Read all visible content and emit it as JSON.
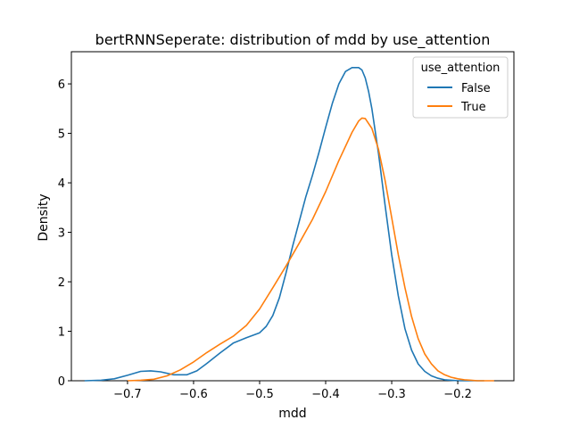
{
  "chart_data": {
    "type": "line",
    "title": "bertRNNSeperate: distribution of mdd by use_attention",
    "xlabel": "mdd",
    "ylabel": "Density",
    "xlim": [
      -0.785,
      -0.115
    ],
    "ylim": [
      0,
      6.65
    ],
    "xticks": [
      -0.7,
      -0.6,
      -0.5,
      -0.4,
      -0.3,
      -0.2
    ],
    "xtick_labels": [
      "−0.7",
      "−0.6",
      "−0.5",
      "−0.4",
      "−0.3",
      "−0.2"
    ],
    "yticks": [
      0,
      1,
      2,
      3,
      4,
      5,
      6
    ],
    "ytick_labels": [
      "0",
      "1",
      "2",
      "3",
      "4",
      "5",
      "6"
    ],
    "grid": false,
    "legend": {
      "title": "use_attention",
      "placement": "top-right"
    },
    "series": [
      {
        "name": "False",
        "color": "#1f77b4",
        "x": [
          -0.765,
          -0.74,
          -0.72,
          -0.7,
          -0.68,
          -0.665,
          -0.65,
          -0.63,
          -0.61,
          -0.595,
          -0.58,
          -0.56,
          -0.54,
          -0.52,
          -0.5,
          -0.49,
          -0.48,
          -0.47,
          -0.46,
          -0.45,
          -0.44,
          -0.43,
          -0.42,
          -0.41,
          -0.4,
          -0.39,
          -0.38,
          -0.37,
          -0.36,
          -0.35,
          -0.345,
          -0.34,
          -0.335,
          -0.33,
          -0.32,
          -0.31,
          -0.3,
          -0.29,
          -0.28,
          -0.27,
          -0.26,
          -0.25,
          -0.24,
          -0.23,
          -0.22,
          -0.21,
          -0.2,
          -0.19,
          -0.18,
          -0.17,
          -0.16
        ],
        "y": [
          0.0,
          0.01,
          0.04,
          0.11,
          0.19,
          0.2,
          0.18,
          0.12,
          0.12,
          0.2,
          0.35,
          0.56,
          0.76,
          0.87,
          0.97,
          1.1,
          1.32,
          1.68,
          2.18,
          2.72,
          3.22,
          3.72,
          4.15,
          4.62,
          5.12,
          5.6,
          6.0,
          6.25,
          6.33,
          6.33,
          6.28,
          6.12,
          5.85,
          5.5,
          4.6,
          3.55,
          2.55,
          1.72,
          1.05,
          0.62,
          0.34,
          0.19,
          0.1,
          0.05,
          0.02,
          0.01,
          0.0,
          0.0,
          0.0,
          0.0,
          0.0
        ]
      },
      {
        "name": "True",
        "color": "#ff7f0e",
        "x": [
          -0.7,
          -0.68,
          -0.66,
          -0.64,
          -0.62,
          -0.6,
          -0.58,
          -0.56,
          -0.54,
          -0.52,
          -0.5,
          -0.48,
          -0.46,
          -0.44,
          -0.42,
          -0.4,
          -0.38,
          -0.36,
          -0.35,
          -0.345,
          -0.34,
          -0.33,
          -0.32,
          -0.31,
          -0.3,
          -0.29,
          -0.28,
          -0.27,
          -0.26,
          -0.25,
          -0.24,
          -0.23,
          -0.22,
          -0.21,
          -0.2,
          -0.19,
          -0.18,
          -0.17,
          -0.16,
          -0.145
        ],
        "y": [
          0.0,
          0.01,
          0.03,
          0.1,
          0.22,
          0.38,
          0.57,
          0.74,
          0.9,
          1.12,
          1.45,
          1.88,
          2.32,
          2.78,
          3.26,
          3.82,
          4.45,
          5.02,
          5.25,
          5.31,
          5.3,
          5.1,
          4.68,
          4.05,
          3.3,
          2.55,
          1.88,
          1.3,
          0.85,
          0.54,
          0.34,
          0.2,
          0.12,
          0.07,
          0.04,
          0.02,
          0.01,
          0.0,
          0.0,
          0.0
        ]
      }
    ]
  }
}
